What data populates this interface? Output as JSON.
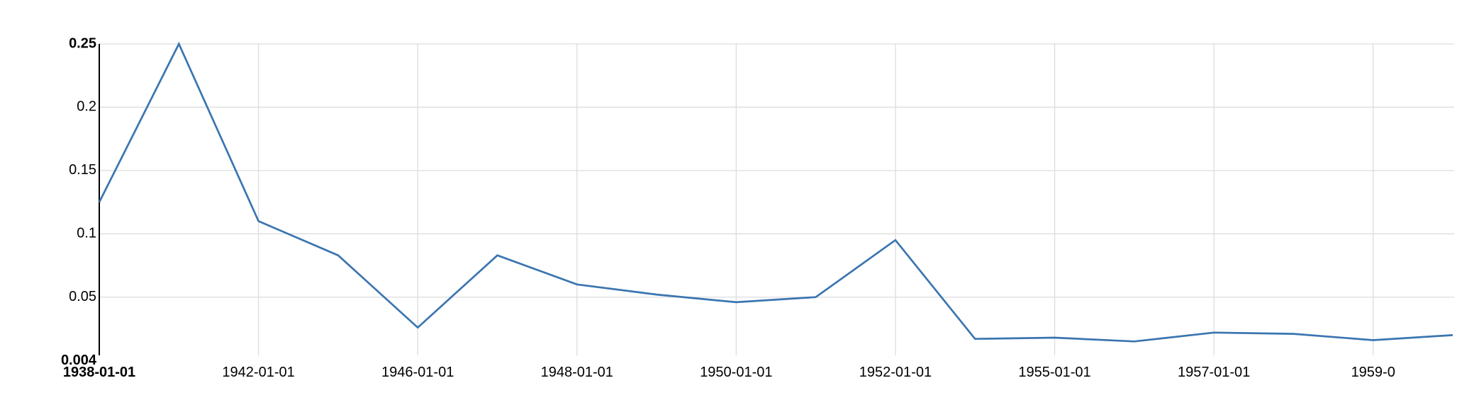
{
  "chart_data": {
    "type": "line",
    "title": "",
    "xlabel": "",
    "ylabel": "",
    "grid": true,
    "ylim": [
      0.004,
      0.25
    ],
    "y_ticks": [
      {
        "value": 0.25,
        "label": "0.25",
        "bold": true
      },
      {
        "value": 0.2,
        "label": "0.2",
        "bold": false
      },
      {
        "value": 0.15,
        "label": "0.15",
        "bold": false
      },
      {
        "value": 0.1,
        "label": "0.1",
        "bold": false
      },
      {
        "value": 0.05,
        "label": "0.05",
        "bold": false
      },
      {
        "value": 0.004,
        "label": "0.004",
        "bold": true
      }
    ],
    "x_ticks": [
      {
        "label": "1938-01-01",
        "bold": true
      },
      {
        "label": "1942-01-01",
        "bold": false
      },
      {
        "label": "1946-01-01",
        "bold": false
      },
      {
        "label": "1948-01-01",
        "bold": false
      },
      {
        "label": "1950-01-01",
        "bold": false
      },
      {
        "label": "1952-01-01",
        "bold": false
      },
      {
        "label": "1955-01-01",
        "bold": false
      },
      {
        "label": "1957-01-01",
        "bold": false
      },
      {
        "label": "1959-0",
        "bold": false
      }
    ],
    "series": [
      {
        "color": "#3a75b0",
        "values": [
          0.125,
          0.25,
          0.11,
          0.083,
          0.026,
          0.083,
          0.06,
          0.052,
          0.046,
          0.05,
          0.095,
          0.017,
          0.018,
          0.015,
          0.022,
          0.021,
          0.016,
          0.02
        ]
      }
    ]
  }
}
